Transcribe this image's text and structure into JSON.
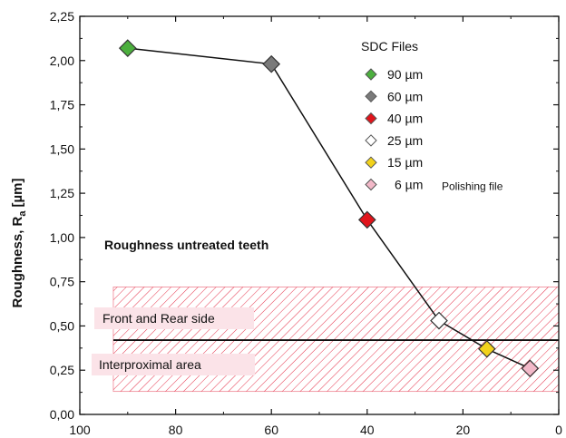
{
  "chart_data": {
    "type": "line",
    "ylabel": "Roughness, R",
    "ylabel_subscript": "a",
    "ylabel_unit": "[µm]",
    "xlim": [
      100,
      0
    ],
    "ylim": [
      0,
      2.25
    ],
    "x_ticks": [
      100,
      80,
      60,
      40,
      20,
      0
    ],
    "y_ticks": [
      "0,00",
      "0,25",
      "0,50",
      "0,75",
      "1,00",
      "1,25",
      "1,50",
      "1,75",
      "2,00",
      "2,25"
    ],
    "y_tick_values": [
      0,
      0.25,
      0.5,
      0.75,
      1.0,
      1.25,
      1.5,
      1.75,
      2.0,
      2.25
    ],
    "series": [
      {
        "points": [
          {
            "x": 90,
            "y": 2.07,
            "color": "#4caf3e"
          },
          {
            "x": 60,
            "y": 1.98,
            "color": "#7a7a7a"
          },
          {
            "x": 40,
            "y": 1.1,
            "color": "#e0141b"
          },
          {
            "x": 25,
            "y": 0.53,
            "color": "#ffffff"
          },
          {
            "x": 15,
            "y": 0.37,
            "color": "#f2d21b"
          },
          {
            "x": 6,
            "y": 0.26,
            "color": "#f2b8c8"
          }
        ]
      }
    ],
    "reference_line": {
      "y": 0.42
    },
    "hatched_band": {
      "y_min": 0.13,
      "y_max": 0.72,
      "color": "#e5334b"
    },
    "annotations": {
      "untreated": "Roughness untreated teeth",
      "front_rear": "Front and Rear side",
      "interproximal": "Interproximal area"
    },
    "legend": {
      "title": "SDC Files",
      "position": "top-right",
      "entries": [
        {
          "label": "90 µm",
          "color": "#4caf3e"
        },
        {
          "label": "60 µm",
          "color": "#7a7a7a"
        },
        {
          "label": "40 µm",
          "color": "#e0141b"
        },
        {
          "label": "25 µm",
          "color": "#ffffff"
        },
        {
          "label": "15 µm",
          "color": "#f2d21b"
        },
        {
          "label": "6 µm",
          "color": "#f2b8c8",
          "note": "Polishing file"
        }
      ]
    }
  }
}
